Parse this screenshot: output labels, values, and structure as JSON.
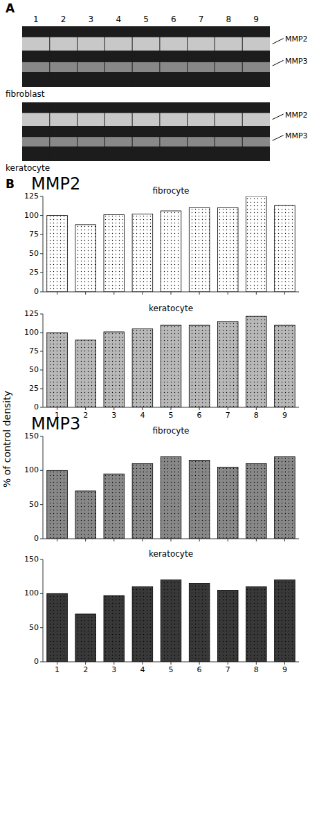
{
  "chart_data": [
    {
      "type": "gel",
      "title": "A",
      "subtitle": "fibroblast",
      "categories": [
        1,
        2,
        3,
        4,
        5,
        6,
        7,
        8,
        9
      ],
      "annotations": [
        "MMP2",
        "MMP3"
      ]
    },
    {
      "type": "gel",
      "subtitle": "keratocyte",
      "annotations": [
        "MMP2",
        "MMP3"
      ]
    },
    {
      "type": "bar",
      "title": "fibrocyte",
      "annotations": [
        "B",
        "MMP2"
      ],
      "ylabel": "% of control density",
      "categories": [
        1,
        2,
        3,
        4,
        5,
        6,
        7,
        8,
        9
      ],
      "values": [
        100,
        88,
        101,
        102,
        106,
        110,
        110,
        125,
        113
      ],
      "color": "#ffffff",
      "ylim": [
        0,
        125
      ],
      "yticks": [
        0,
        25,
        50,
        75,
        100,
        125
      ],
      "tick_labels": "y"
    },
    {
      "type": "bar",
      "title": "keratocyte",
      "categories": [
        1,
        2,
        3,
        4,
        5,
        6,
        7,
        8,
        9
      ],
      "values": [
        100,
        90,
        101,
        105,
        110,
        110,
        115,
        122,
        110
      ],
      "color": "#b8b8b8",
      "ylim": [
        0,
        125
      ],
      "yticks": [
        0,
        25,
        50,
        75,
        100,
        125
      ]
    },
    {
      "type": "bar",
      "title": "fibrocyte",
      "annotations": [
        "MMP3"
      ],
      "categories": [
        1,
        2,
        3,
        4,
        5,
        6,
        7,
        8,
        9
      ],
      "values": [
        100,
        70,
        95,
        110,
        120,
        115,
        105,
        110,
        120
      ],
      "color": "#888888",
      "ylim": [
        0,
        150
      ],
      "yticks": [
        0,
        50,
        100,
        150
      ],
      "tick_labels": "y"
    },
    {
      "type": "bar",
      "title": "keratocyte",
      "categories": [
        1,
        2,
        3,
        4,
        5,
        6,
        7,
        8,
        9
      ],
      "values": [
        100,
        70,
        97,
        110,
        120,
        115,
        105,
        110,
        120
      ],
      "color": "#383838",
      "ylim": [
        0,
        150
      ],
      "yticks": [
        0,
        50,
        100,
        150
      ]
    }
  ]
}
